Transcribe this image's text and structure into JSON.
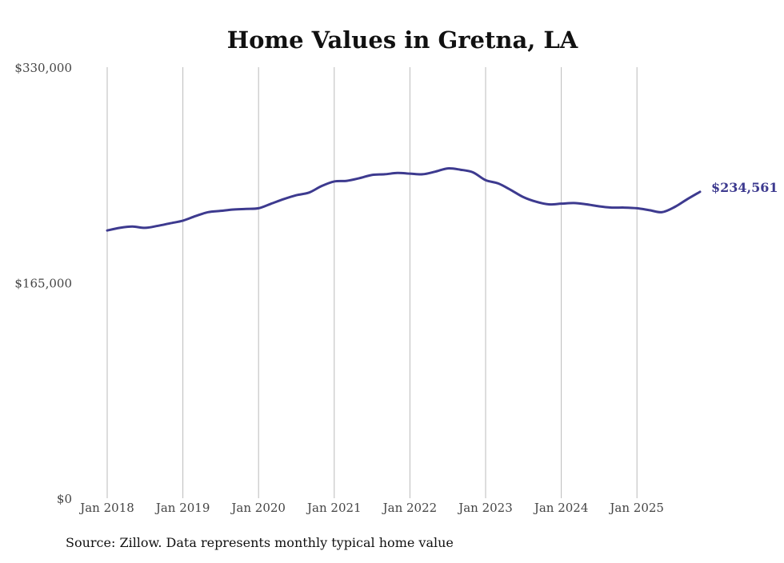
{
  "chart_data": {
    "type": "line",
    "title": "Home Values in Gretna, LA",
    "xlabel": "",
    "ylabel": "",
    "ylim": [
      0,
      330000
    ],
    "yticks": [
      {
        "value": 0,
        "label": "$0"
      },
      {
        "value": 165000,
        "label": "$165,000"
      },
      {
        "value": 330000,
        "label": "$330,000"
      }
    ],
    "xticks": [
      {
        "value": 2018,
        "label": "Jan 2018"
      },
      {
        "value": 2019,
        "label": "Jan 2019"
      },
      {
        "value": 2020,
        "label": "Jan 2020"
      },
      {
        "value": 2021,
        "label": "Jan 2021"
      },
      {
        "value": 2022,
        "label": "Jan 2022"
      },
      {
        "value": 2023,
        "label": "Jan 2023"
      },
      {
        "value": 2024,
        "label": "Jan 2024"
      },
      {
        "value": 2025,
        "label": "Jan 2025"
      }
    ],
    "xlim": [
      2018,
      2025.833
    ],
    "grid": "vertical",
    "series": [
      {
        "name": "Typical home value",
        "color": "#3d3a8f",
        "x": [
          2018,
          2018.167,
          2018.333,
          2018.5,
          2018.667,
          2018.833,
          2019,
          2019.167,
          2019.333,
          2019.5,
          2019.667,
          2019.833,
          2020,
          2020.167,
          2020.333,
          2020.5,
          2020.667,
          2020.833,
          2021,
          2021.167,
          2021.333,
          2021.5,
          2021.667,
          2021.833,
          2022,
          2022.167,
          2022.333,
          2022.5,
          2022.667,
          2022.833,
          2023,
          2023.167,
          2023.333,
          2023.5,
          2023.667,
          2023.833,
          2024,
          2024.167,
          2024.333,
          2024.5,
          2024.667,
          2024.833,
          2025,
          2025.167,
          2025.333,
          2025.5,
          2025.667,
          2025.833
        ],
        "values": [
          205000,
          207000,
          208000,
          207000,
          208500,
          210500,
          212500,
          216000,
          219000,
          220000,
          221000,
          221500,
          222000,
          225500,
          229000,
          232000,
          234000,
          239000,
          242500,
          243000,
          245000,
          247500,
          248000,
          249000,
          248500,
          248000,
          250000,
          252500,
          251500,
          249500,
          243500,
          241000,
          236000,
          230500,
          227000,
          225000,
          225500,
          226000,
          225000,
          223500,
          222500,
          222500,
          222000,
          220500,
          219000,
          223000,
          229000,
          234561
        ]
      }
    ],
    "end_label": "$234,561"
  },
  "source_note": "Source: Zillow. Data represents monthly typical home value"
}
